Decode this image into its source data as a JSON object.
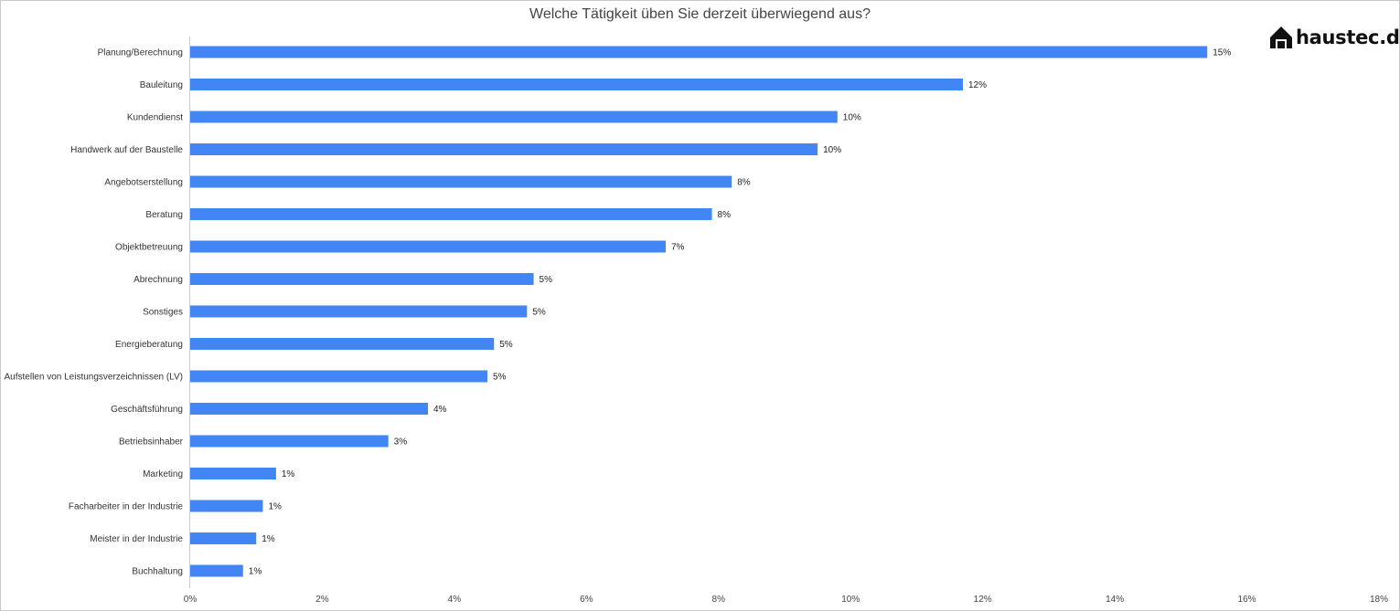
{
  "chart_data": {
    "type": "bar",
    "orientation": "horizontal",
    "title": "Welche Tätigkeit üben Sie derzeit überwiegend aus?",
    "categories": [
      "Planung/Berechnung",
      "Bauleitung",
      "Kundendienst",
      "Handwerk auf der Baustelle",
      "Angebotserstellung",
      "Beratung",
      "Objektbetreuung",
      "Abrechnung",
      "Sonstiges",
      "Energieberatung",
      "Aufstellen von Leistungsverzeichnissen (LV)",
      "Geschäftsführung",
      "Betriebsinhaber",
      "Marketing",
      "Facharbeiter in der Industrie",
      "Meister in der Industrie",
      "Buchhaltung"
    ],
    "values": [
      15.4,
      11.7,
      9.8,
      9.5,
      8.2,
      7.9,
      7.2,
      5.2,
      5.1,
      4.6,
      4.5,
      3.6,
      3.0,
      1.3,
      1.1,
      1.0,
      0.8
    ],
    "value_labels": [
      "15%",
      "12%",
      "10%",
      "10%",
      "8%",
      "8%",
      "7%",
      "5%",
      "5%",
      "5%",
      "5%",
      "4%",
      "3%",
      "1%",
      "1%",
      "1%",
      "1%"
    ],
    "xlim": [
      0,
      18
    ],
    "xticks": [
      0,
      2,
      4,
      6,
      8,
      10,
      12,
      14,
      16,
      18
    ],
    "xtick_labels": [
      "0%",
      "2%",
      "4%",
      "6%",
      "8%",
      "10%",
      "12%",
      "14%",
      "16%",
      "18%"
    ],
    "xlabel": "",
    "ylabel": "",
    "grid": false,
    "legend": "none",
    "bar_color": "#4285f4"
  },
  "logo": {
    "text": "haustec.de",
    "icon": "house-icon"
  }
}
